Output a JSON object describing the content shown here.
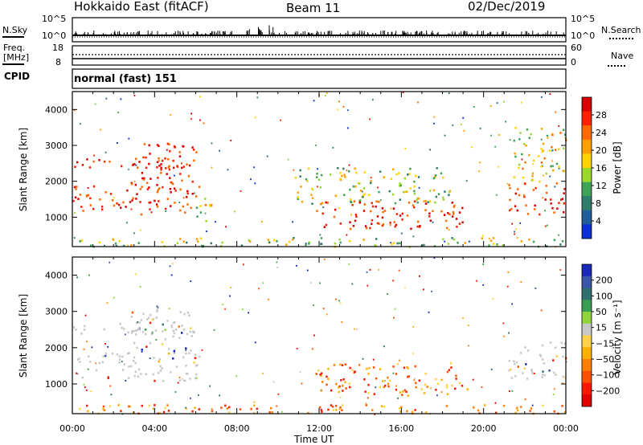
{
  "header": {
    "station": "Hokkaido East (fitACF)",
    "beam": "Beam 11",
    "date": "02/Dec/2019"
  },
  "noise_panel": {
    "left_label": "N.Sky",
    "right_label": "N.Search",
    "left_ticks": [
      "10^5",
      "10^0"
    ],
    "right_ticks": [
      "10^5",
      "10^0"
    ]
  },
  "freq_panel": {
    "left_label_1": "Freq.",
    "left_label_2": "[MHz]",
    "left_ticks": [
      "18",
      "8"
    ],
    "right_label": "Nave",
    "right_ticks": [
      "60",
      "0"
    ],
    "cpid_label": "CPID"
  },
  "cpid": {
    "mode_text": "normal (fast) 151"
  },
  "chart_data": [
    {
      "type": "heatmap",
      "title": "",
      "ylabel": "Slant Range [km]",
      "xlabel": "Time UT",
      "yticks": [
        1000,
        2000,
        3000,
        4000
      ],
      "ylim": [
        180,
        4500
      ],
      "xticks": [
        "00:00",
        "04:00",
        "08:00",
        "12:00",
        "16:00",
        "20:00",
        "00:00"
      ],
      "xlim_hours": [
        0,
        24
      ],
      "colorbar": {
        "label": "Power [dB]",
        "ticks": [
          "28",
          "24",
          "20",
          "16",
          "12",
          "8",
          "4"
        ],
        "colors": [
          "#d80000",
          "#ff2000",
          "#ff6a00",
          "#ff9f00",
          "#ffd300",
          "#9ad82c",
          "#3fa356",
          "#2e7d6d",
          "#215d9b",
          "#0d2fd6"
        ]
      },
      "regions": [
        {
          "t": [
            0.0,
            6.2
          ],
          "r": [
            1100,
            1900
          ],
          "level": "high"
        },
        {
          "t": [
            0.0,
            6.0
          ],
          "r": [
            2400,
            2700
          ],
          "level": "high"
        },
        {
          "t": [
            2.8,
            6.0
          ],
          "r": [
            1900,
            3100
          ],
          "level": "high"
        },
        {
          "t": [
            6.0,
            7.0
          ],
          "r": [
            900,
            1600
          ],
          "level": "mid"
        },
        {
          "t": [
            11.8,
            19.2
          ],
          "r": [
            700,
            1500
          ],
          "level": "high"
        },
        {
          "t": [
            10.8,
            18.4
          ],
          "r": [
            1400,
            2400
          ],
          "level": "low"
        },
        {
          "t": [
            21.2,
            24.0
          ],
          "r": [
            1100,
            2000
          ],
          "level": "high"
        },
        {
          "t": [
            21.4,
            24.0
          ],
          "r": [
            2000,
            3600
          ],
          "level": "mid"
        },
        {
          "t": [
            0.0,
            24.0
          ],
          "r": [
            200,
            450
          ],
          "level": "low"
        }
      ]
    },
    {
      "type": "heatmap",
      "title": "",
      "ylabel": "Slant Range [km]",
      "xlabel": "Time UT",
      "yticks": [
        1000,
        2000,
        3000,
        4000
      ],
      "ylim": [
        180,
        4500
      ],
      "xticks": [
        "00:00",
        "04:00",
        "08:00",
        "12:00",
        "16:00",
        "20:00",
        "00:00"
      ],
      "xlim_hours": [
        0,
        24
      ],
      "colorbar": {
        "label": "Velocity [m s⁻¹]",
        "ticks": [
          "200",
          "100",
          "50",
          "15",
          "−15",
          "−50",
          "−100",
          "−200"
        ],
        "colors": [
          "#1a2ab8",
          "#3b55a8",
          "#2f6f6f",
          "#3a9e52",
          "#8fd43a",
          "#c8c8c8",
          "#ffd24a",
          "#ffb000",
          "#ff8000",
          "#ff5000",
          "#ff1800",
          "#e00000"
        ]
      },
      "regions": [
        {
          "t": [
            0.0,
            6.2
          ],
          "r": [
            1100,
            1900
          ],
          "level": "zero"
        },
        {
          "t": [
            0.0,
            6.0
          ],
          "r": [
            2400,
            2700
          ],
          "level": "zero"
        },
        {
          "t": [
            2.8,
            6.0
          ],
          "r": [
            1900,
            3100
          ],
          "level": "zero"
        },
        {
          "t": [
            11.8,
            19.2
          ],
          "r": [
            700,
            1600
          ],
          "level": "negative"
        },
        {
          "t": [
            21.2,
            24.0
          ],
          "r": [
            1100,
            2200
          ],
          "level": "zero"
        },
        {
          "t": [
            0.0,
            24.0
          ],
          "r": [
            200,
            450
          ],
          "level": "negative"
        }
      ]
    }
  ]
}
